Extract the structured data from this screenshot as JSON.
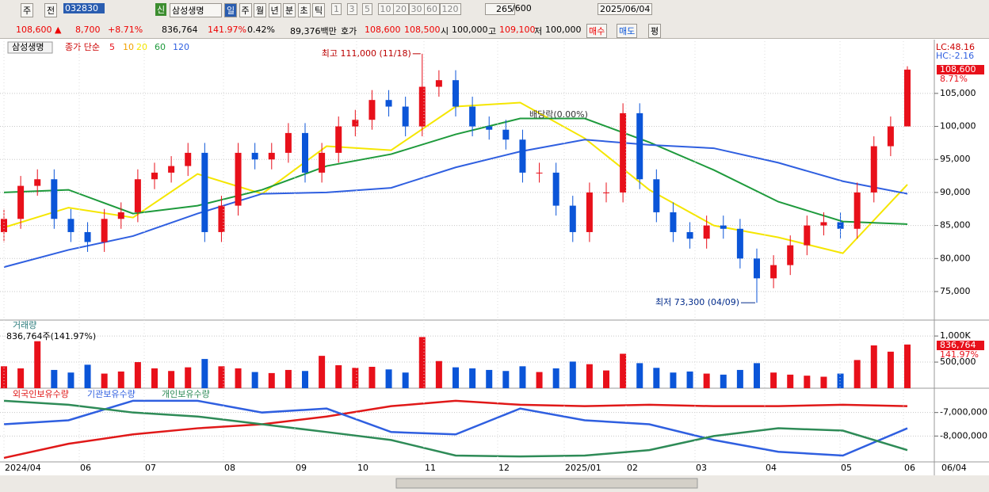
{
  "toolbar": {
    "market": "주",
    "prev": "전",
    "code": "032830",
    "badge": "신",
    "name": "삼성생명",
    "periods": [
      "일",
      "주",
      "월",
      "년",
      "분",
      "초",
      "틱"
    ],
    "intervals": [
      "1",
      "3",
      "5",
      "10",
      "20",
      "30",
      "60",
      "120"
    ],
    "count": "265",
    "max_count": "/600",
    "date": "2025/06/04"
  },
  "quote_bar": {
    "price": "108,600 ▲",
    "change": "8,700",
    "change_pct": "+8.71%",
    "volume": "836,764",
    "volume_pct": "141.97%",
    "turnover": "0.42%",
    "amount": "89,376백만",
    "bid_ask_label": "호가",
    "ask": "108,600",
    "bid": "108,500",
    "open_label": "시",
    "open": "100,000",
    "high_label": "고",
    "high": "109,100",
    "low_label": "저",
    "low": "100,000",
    "buy": "매수",
    "sell": "매도",
    "avg": "평"
  },
  "chart_data": [
    {
      "type": "candlestick",
      "title": "삼성생명",
      "ma_label": "종가 단순",
      "up_color": "#e8101a",
      "down_color": "#0b55d8",
      "open": [
        84000,
        86000,
        91000,
        92000,
        86000,
        84000,
        82500,
        86000,
        87000,
        92000,
        93000,
        94000,
        96000,
        84000,
        88000,
        96000,
        95000,
        96000,
        99000,
        93000,
        96000,
        100000,
        101000,
        104000,
        103000,
        100000,
        106000,
        107000,
        103000,
        100000,
        99500,
        98000,
        93000,
        93000,
        88000,
        84000,
        90000,
        90000,
        102000,
        92000,
        87000,
        84000,
        83000,
        85000,
        84500,
        80000,
        77000,
        79000,
        82000,
        85000,
        85500,
        84500,
        90000,
        97000,
        100000
      ],
      "high": [
        87500,
        92500,
        93500,
        93500,
        87500,
        85500,
        87500,
        88500,
        93500,
        94500,
        95500,
        97500,
        97500,
        89500,
        97500,
        97500,
        97500,
        100500,
        100500,
        97500,
        101500,
        102500,
        105500,
        105500,
        104500,
        111000,
        108500,
        108500,
        104500,
        101500,
        101000,
        99500,
        94500,
        94500,
        89500,
        91500,
        91500,
        103500,
        103500,
        93500,
        88500,
        85500,
        86500,
        86500,
        86000,
        81500,
        80500,
        83500,
        86500,
        87000,
        87000,
        91500,
        98500,
        101500,
        109100
      ],
      "low": [
        82500,
        84500,
        89500,
        84500,
        82500,
        81000,
        81000,
        84500,
        85500,
        90500,
        91500,
        92500,
        82500,
        82500,
        86500,
        93500,
        93500,
        94500,
        91500,
        91500,
        94500,
        98500,
        99500,
        101500,
        98500,
        98500,
        104500,
        101500,
        98500,
        98000,
        96500,
        91500,
        91500,
        86500,
        82500,
        82500,
        88500,
        88500,
        90500,
        85500,
        82500,
        81500,
        81500,
        83000,
        78500,
        73300,
        75500,
        77500,
        80500,
        83500,
        83000,
        83000,
        88500,
        95500,
        100000
      ],
      "close": [
        86000,
        91000,
        92000,
        86000,
        84000,
        82500,
        86000,
        87000,
        92000,
        93000,
        94000,
        96000,
        84000,
        88000,
        96000,
        95000,
        96000,
        99000,
        93000,
        96000,
        100000,
        101000,
        104000,
        103000,
        100000,
        106000,
        107000,
        103000,
        100000,
        99500,
        98000,
        93000,
        93000,
        88000,
        84000,
        90000,
        90000,
        102000,
        92000,
        87000,
        84000,
        83000,
        85000,
        84500,
        80000,
        77000,
        79000,
        82000,
        85000,
        85500,
        84500,
        90000,
        97000,
        100000,
        108600
      ],
      "moving_averages": [
        {
          "name": "5",
          "color": "#e8101a"
        },
        {
          "name": "10",
          "color": "#f2a100"
        },
        {
          "name": "20",
          "color": "#f5e600",
          "values": [
            84700,
            87700,
            86200,
            92800,
            89800,
            97000,
            96400,
            103000,
            103600,
            98200,
            90400,
            85000,
            83200,
            80800,
            91200
          ]
        },
        {
          "name": "60",
          "color": "#1e9a3c",
          "values": [
            90000,
            90400,
            86800,
            88000,
            90400,
            94000,
            95800,
            98800,
            101200,
            101200,
            97600,
            93400,
            88600,
            85600,
            85200
          ]
        },
        {
          "name": "120",
          "color": "#2f5fe0",
          "values": [
            78700,
            81300,
            83400,
            86800,
            89800,
            90000,
            90700,
            93800,
            96200,
            98000,
            97200,
            96700,
            94500,
            91700,
            89800
          ]
        }
      ],
      "ylim": [
        70800,
        112900
      ],
      "yticks": [
        {
          "value": 105000,
          "label": "105,000"
        },
        {
          "value": 100000,
          "label": "100,000"
        },
        {
          "value": 95000,
          "label": "95,000"
        },
        {
          "value": 90000,
          "label": "90,000"
        },
        {
          "value": 85000,
          "label": "85,000"
        },
        {
          "value": 80000,
          "label": "80,000"
        },
        {
          "value": 75000,
          "label": "75,000"
        }
      ],
      "high_annotation": "최고 111,000 (11/18)",
      "low_annotation": "최저 73,300 (04/09)",
      "dividend_annotation": "배당락(0.00%)",
      "lc": "LC:48.16",
      "hc": "HC:-2.16",
      "last_price": "108,600",
      "last_change": "8.71%"
    },
    {
      "type": "bar",
      "title": "거래량",
      "info": "836,764주(141.97%)",
      "values": [
        420000,
        380000,
        900000,
        350000,
        300000,
        450000,
        280000,
        320000,
        500000,
        380000,
        330000,
        400000,
        560000,
        420000,
        380000,
        310000,
        290000,
        350000,
        330000,
        620000,
        440000,
        390000,
        410000,
        360000,
        300000,
        980000,
        520000,
        400000,
        380000,
        350000,
        330000,
        420000,
        310000,
        380000,
        510000,
        460000,
        340000,
        660000,
        480000,
        390000,
        300000,
        320000,
        280000,
        260000,
        350000,
        480000,
        300000,
        260000,
        240000,
        220000,
        280000,
        540000,
        820000,
        700000,
        836764
      ],
      "ylim": [
        0,
        1290000
      ],
      "yticks": [
        {
          "value": 1000000,
          "label": "1,000K"
        },
        {
          "value": 500000,
          "label": "500,000"
        }
      ],
      "last_label": "836,764",
      "last_change": "141.97%"
    },
    {
      "type": "line",
      "series": [
        {
          "name": "외국인보유수량",
          "color": "#e01818",
          "values": [
            -8930000,
            -8330000,
            -7930000,
            -7670000,
            -7500000,
            -7170000,
            -6730000,
            -6500000,
            -6670000,
            -6730000,
            -6670000,
            -6730000,
            -6730000,
            -6670000,
            -6730000
          ]
        },
        {
          "name": "기관보유수량",
          "color": "#2f5fe0",
          "values": [
            -7500000,
            -7330000,
            -6500000,
            -6500000,
            -7000000,
            -6830000,
            -7830000,
            -7930000,
            -6830000,
            -7330000,
            -7500000,
            -8170000,
            -8670000,
            -8830000,
            -7670000
          ]
        },
        {
          "name": "개인보유수량",
          "color": "#2e8b57",
          "values": [
            -6500000,
            -6670000,
            -7000000,
            -7170000,
            -7500000,
            -7830000,
            -8170000,
            -8830000,
            -8870000,
            -8830000,
            -8600000,
            -8000000,
            -7670000,
            -7770000,
            -8600000
          ]
        }
      ],
      "ylim": [
        -9067000,
        -6033000
      ],
      "yticks": [
        {
          "value": -7000000,
          "label": "-7,000,000"
        },
        {
          "value": -8000000,
          "label": "-8,000,000"
        }
      ]
    }
  ],
  "date_axis": [
    "2024/04",
    "06",
    "07",
    "08",
    "09",
    "10",
    "11",
    "12",
    "2025/01",
    "02",
    "03",
    "04",
    "05",
    "06"
  ],
  "date_axis_last": "06/04"
}
